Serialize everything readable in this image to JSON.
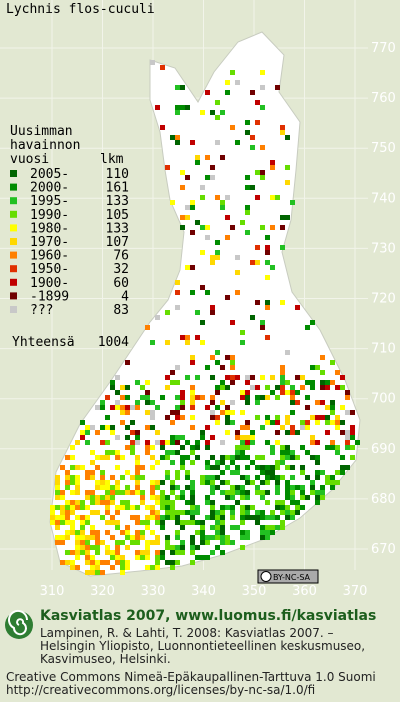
{
  "map": {
    "title": "Lychnis flos-cuculi",
    "legend": {
      "heading_lines": [
        "Uusimman",
        "havainnon",
        "vuosi"
      ],
      "count_heading": "lkm",
      "items": [
        {
          "label": "2005-",
          "count": 110,
          "color": "#006400"
        },
        {
          "label": "2000-",
          "count": 161,
          "color": "#008c00"
        },
        {
          "label": "1995-",
          "count": 133,
          "color": "#22c022"
        },
        {
          "label": "1990-",
          "count": 105,
          "color": "#66dd00"
        },
        {
          "label": "1980-",
          "count": 133,
          "color": "#ffff00"
        },
        {
          "label": "1970-",
          "count": 107,
          "color": "#ffd800"
        },
        {
          "label": "1960-",
          "count": 76,
          "color": "#ff8000"
        },
        {
          "label": "1950-",
          "count": 32,
          "color": "#e03000"
        },
        {
          "label": "1900-",
          "count": 60,
          "color": "#c00000"
        },
        {
          "label": "-1899",
          "count": 4,
          "color": "#700000"
        },
        {
          "label": "???",
          "count": 83,
          "color": "#c8c8c8"
        }
      ],
      "total_label": "Yhteensä",
      "total": 1004
    },
    "y_labels": [
      770,
      760,
      750,
      740,
      730,
      720,
      710,
      700,
      690,
      680,
      670
    ],
    "x_labels": [
      310,
      320,
      330,
      340,
      350,
      360,
      370
    ],
    "license_badge": "BY-NC-SA",
    "footer": {
      "heading": "Kasviatlas 2007, www.luomus.fi/kasviatlas",
      "citation_lines": [
        "Lampinen, R. & Lahti, T. 2008: Kasviatlas 2007. –",
        "Helsingin Yliopisto, Luonnontieteellinen keskusmuseo,",
        "Kasvimuseo, Helsinki."
      ],
      "license_lines": [
        "Creative Commons Nimeä-Epäkaupallinen-Tarttuva 1.0 Suomi",
        "http://creativecommons.org/licenses/by-nc-sa/1.0/fi"
      ]
    }
  }
}
